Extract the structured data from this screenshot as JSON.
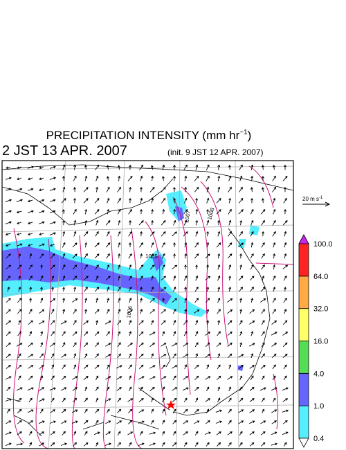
{
  "title": {
    "main": "PRECIPITATION INTENSITY (mm hr",
    "sup": "−1",
    "end": ")"
  },
  "valid_time": "2 JST 13 APR. 2007",
  "init_time": "(init. 9 JST 12 APR. 2007)",
  "wind_scale": {
    "main": "20 m s",
    "sup": "-1"
  },
  "contour_labels": [
    "1005",
    "1007",
    "1008",
    "1006"
  ],
  "colorbar": {
    "levels": [
      {
        "value": 0.4,
        "label": "0.4"
      },
      {
        "value": 1,
        "label": "1.0"
      },
      {
        "value": 4,
        "label": "4.0"
      },
      {
        "value": 16,
        "label": "16.0"
      },
      {
        "value": 32,
        "label": "32.0"
      },
      {
        "value": 64,
        "label": "64.0"
      },
      {
        "value": 100,
        "label": "100.0"
      }
    ],
    "colors": [
      "#55eeff",
      "#6666ff",
      "#55dd55",
      "#ffff66",
      "#ffaa44",
      "#ff2222"
    ],
    "under_color": "#ffffff",
    "over_color": "#cc22ee"
  }
}
